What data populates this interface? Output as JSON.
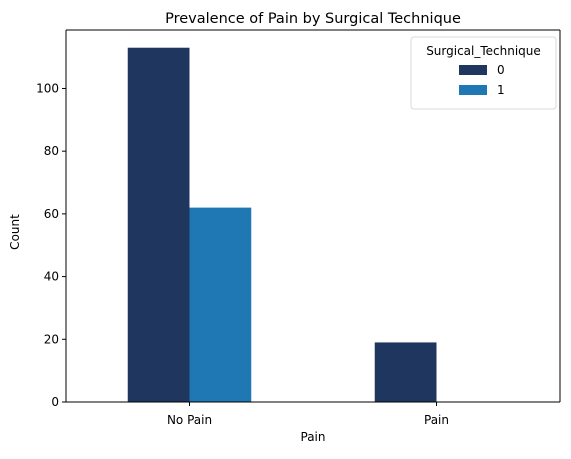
{
  "chart_data": {
    "type": "bar",
    "title": "Prevalence of Pain by Surgical Technique",
    "xlabel": "Pain",
    "ylabel": "Count",
    "categories": [
      "No Pain",
      "Pain"
    ],
    "series": [
      {
        "name": "0",
        "color": "#1f365f",
        "values": [
          113,
          19
        ]
      },
      {
        "name": "1",
        "color": "#1f77b4",
        "values": [
          62,
          0
        ]
      }
    ],
    "ylim": [
      0,
      118.65
    ],
    "yticks": [
      0,
      20,
      40,
      60,
      80,
      100
    ],
    "legend": {
      "title": "Surgical_Technique",
      "placement": "top-right"
    },
    "grid": false
  }
}
